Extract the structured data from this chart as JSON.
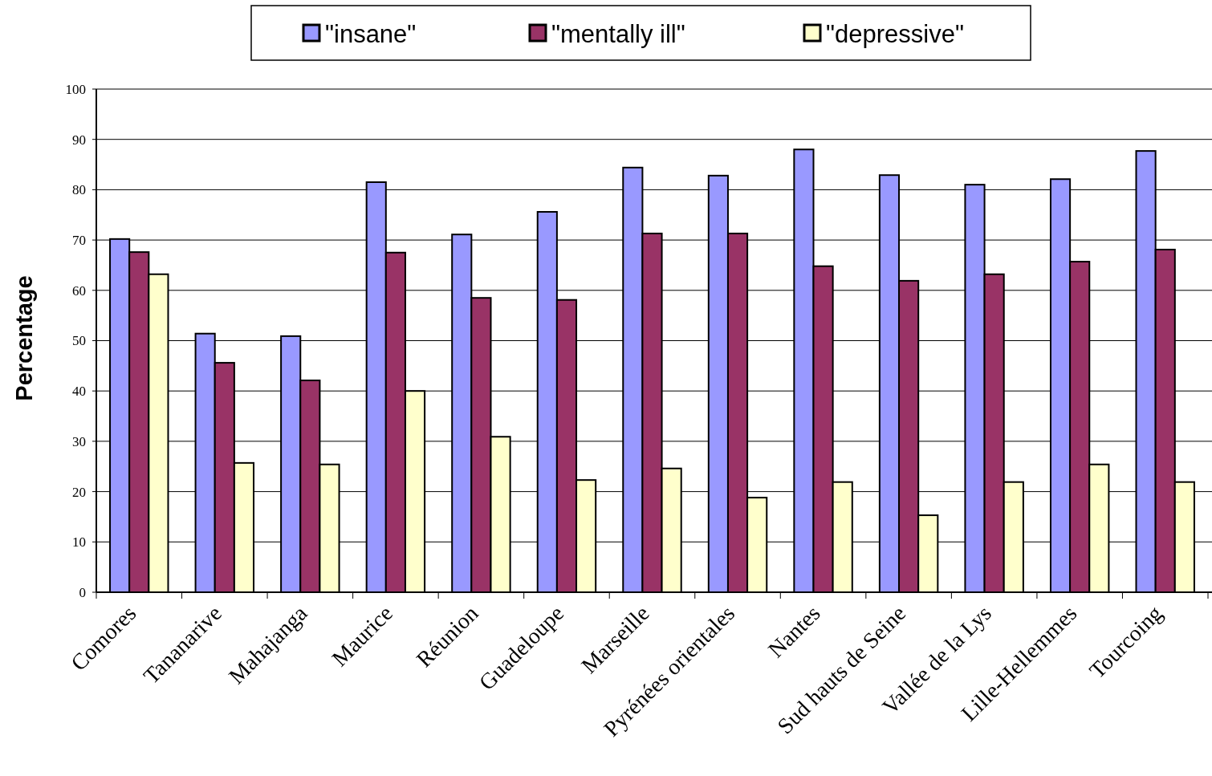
{
  "chart_data": {
    "type": "bar",
    "ylabel": "Percentage",
    "categories": [
      "Comores",
      "Tananarive",
      "Mahajanga",
      "Maurice",
      "Réunion",
      "Guadeloupe",
      "Marseille",
      "Pyrénées orientales",
      "Nantes",
      "Sud hauts de Seine",
      "Vallée de la Lys",
      "Lille-Hellemmes",
      "Tourcoing"
    ],
    "series": [
      {
        "name": "\"insane\"",
        "color": "#9999ff",
        "values": [
          70.2,
          51.4,
          50.9,
          81.5,
          71.1,
          75.6,
          84.4,
          82.8,
          88.0,
          82.9,
          81.0,
          82.1,
          87.7
        ]
      },
      {
        "name": "\"mentally ill\"",
        "color": "#993366",
        "values": [
          67.6,
          45.6,
          42.1,
          67.5,
          58.5,
          58.1,
          71.3,
          71.3,
          64.8,
          61.9,
          63.2,
          65.7,
          68.1
        ]
      },
      {
        "name": "\"depressive\"",
        "color": "#ffffcc",
        "values": [
          63.2,
          25.7,
          25.4,
          40.0,
          30.9,
          22.3,
          24.6,
          18.8,
          21.9,
          15.3,
          21.9,
          25.4,
          21.9
        ]
      }
    ],
    "ylim": [
      0,
      100
    ],
    "yticks": [
      0,
      10,
      20,
      30,
      40,
      50,
      60,
      70,
      80,
      90,
      100
    ],
    "grid": "y",
    "legend": "top"
  }
}
